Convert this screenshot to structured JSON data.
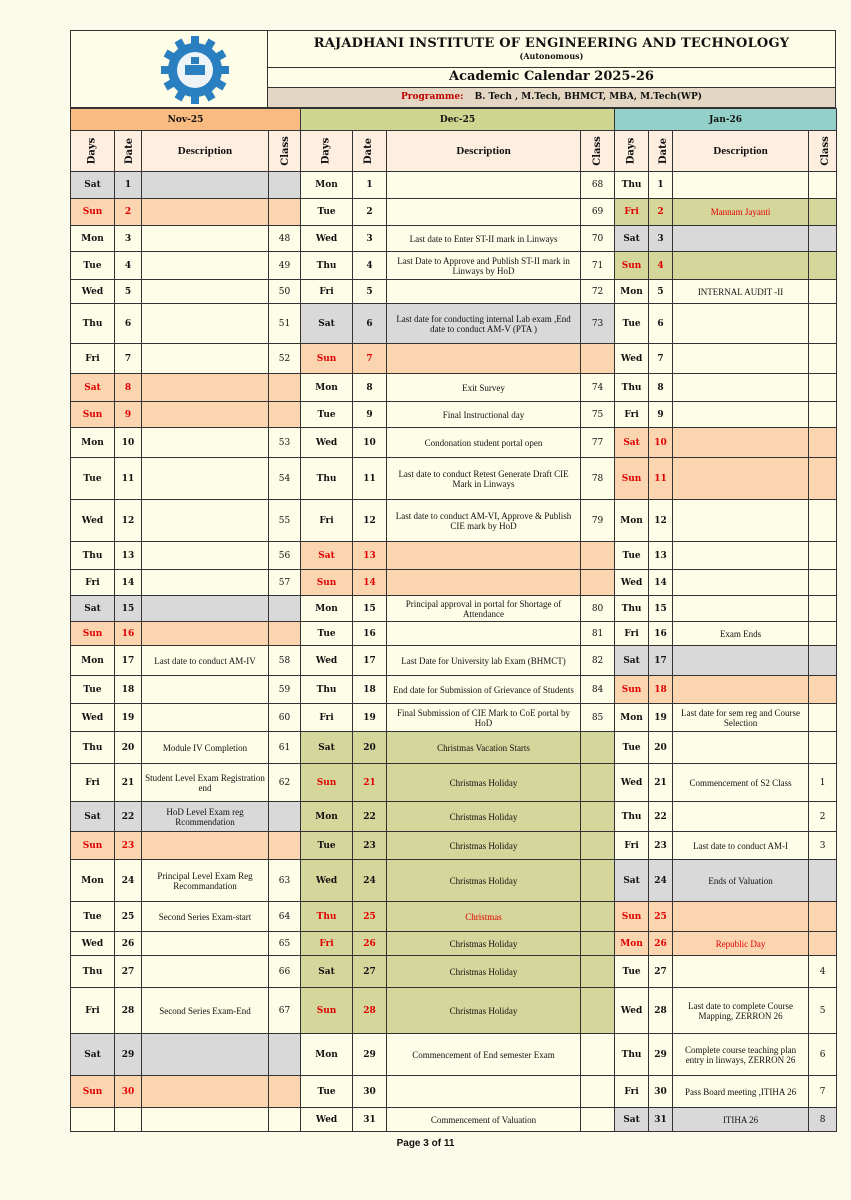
{
  "header": {
    "institute": "RAJADHANI INSTITUTE OF ENGINEERING AND TECHNOLOGY",
    "autonomous": "(Autonomous)",
    "calendar_title": "Academic Calendar 2025-26",
    "programme_label": "Programme:",
    "programme_value": "B. Tech  , M.Tech, BHMCT, MBA, M.Tech(WP)",
    "logo_text": "RIET"
  },
  "columns": {
    "days": "Days",
    "date": "Date",
    "description": "Description",
    "class": "Class"
  },
  "colors": {
    "nov": "#f9bb80",
    "dec": "#cfd68f",
    "jan": "#93d0c9",
    "saturday": "#d9d9d9",
    "holiday": "#fbd5b0",
    "vacation": "#d5d69b",
    "holiday_text": "#e00000"
  },
  "months": [
    {
      "label": "Nov-25",
      "key": "nov",
      "rows": [
        {
          "day": "Sat",
          "date": "1",
          "desc": "",
          "class": "",
          "shade": "sat"
        },
        {
          "day": "Sun",
          "date": "2",
          "desc": "",
          "class": "",
          "shade": "sun",
          "red": true
        },
        {
          "day": "Mon",
          "date": "3",
          "desc": "",
          "class": "48"
        },
        {
          "day": "Tue",
          "date": "4",
          "desc": "",
          "class": "49"
        },
        {
          "day": "Wed",
          "date": "5",
          "desc": "",
          "class": "50"
        },
        {
          "day": "Thu",
          "date": "6",
          "desc": "",
          "class": "51"
        },
        {
          "day": "Fri",
          "date": "7",
          "desc": "",
          "class": "52"
        },
        {
          "day": "Sat",
          "date": "8",
          "desc": "",
          "class": "",
          "shade": "sun",
          "red": true
        },
        {
          "day": "Sun",
          "date": "9",
          "desc": "",
          "class": "",
          "shade": "sun",
          "red": true
        },
        {
          "day": "Mon",
          "date": "10",
          "desc": "",
          "class": "53"
        },
        {
          "day": "Tue",
          "date": "11",
          "desc": "",
          "class": "54"
        },
        {
          "day": "Wed",
          "date": "12",
          "desc": "",
          "class": "55"
        },
        {
          "day": "Thu",
          "date": "13",
          "desc": "",
          "class": "56"
        },
        {
          "day": "Fri",
          "date": "14",
          "desc": "",
          "class": "57"
        },
        {
          "day": "Sat",
          "date": "15",
          "desc": "",
          "class": "",
          "shade": "sat"
        },
        {
          "day": "Sun",
          "date": "16",
          "desc": "",
          "class": "",
          "shade": "sun",
          "red": true
        },
        {
          "day": "Mon",
          "date": "17",
          "desc": "Last date to conduct AM-IV",
          "class": "58"
        },
        {
          "day": "Tue",
          "date": "18",
          "desc": "",
          "class": "59"
        },
        {
          "day": "Wed",
          "date": "19",
          "desc": "",
          "class": "60"
        },
        {
          "day": "Thu",
          "date": "20",
          "desc": "Module IV Completion",
          "class": "61"
        },
        {
          "day": "Fri",
          "date": "21",
          "desc": "Student  Level Exam Registration end",
          "class": "62"
        },
        {
          "day": "Sat",
          "date": "22",
          "desc": "HoD Level Exam reg Rcommendation",
          "class": "",
          "shade": "sat"
        },
        {
          "day": "Sun",
          "date": "23",
          "desc": "",
          "class": "",
          "shade": "sun",
          "red": true
        },
        {
          "day": "Mon",
          "date": "24",
          "desc": "Principal Level Exam Reg Recommandation",
          "class": "63"
        },
        {
          "day": "Tue",
          "date": "25",
          "desc": "Second Series Exam-start",
          "class": "64"
        },
        {
          "day": "Wed",
          "date": "26",
          "desc": "",
          "class": "65"
        },
        {
          "day": "Thu",
          "date": "27",
          "desc": "",
          "class": "66"
        },
        {
          "day": "Fri",
          "date": "28",
          "desc": "Second Series Exam-End",
          "class": "67"
        },
        {
          "day": "Sat",
          "date": "29",
          "desc": "",
          "class": "",
          "shade": "sat"
        },
        {
          "day": "Sun",
          "date": "30",
          "desc": "",
          "class": "",
          "shade": "sun",
          "red": true
        }
      ]
    },
    {
      "label": "Dec-25",
      "key": "dec",
      "rows": [
        {
          "day": "Mon",
          "date": "1",
          "desc": "",
          "class": "68"
        },
        {
          "day": "Tue",
          "date": "2",
          "desc": "",
          "class": "69"
        },
        {
          "day": "Wed",
          "date": "3",
          "desc": "Last date to Enter ST-II mark in Linways",
          "class": "70"
        },
        {
          "day": "Thu",
          "date": "4",
          "desc": "Last Date to Approve and Publish ST-II  mark in Linways by HoD",
          "class": "71"
        },
        {
          "day": "Fri",
          "date": "5",
          "desc": "",
          "class": "72"
        },
        {
          "day": "Sat",
          "date": "6",
          "desc": "Last date for conducting internal Lab exam ,End date to conduct AM-V (PTA )",
          "class": "73",
          "shade": "sat"
        },
        {
          "day": "Sun",
          "date": "7",
          "desc": "",
          "class": "",
          "shade": "sun",
          "red": true
        },
        {
          "day": "Mon",
          "date": "8",
          "desc": "Exit  Survey",
          "class": "74"
        },
        {
          "day": "Tue",
          "date": "9",
          "desc": "Final Instructional day",
          "class": "75"
        },
        {
          "day": "Wed",
          "date": "10",
          "desc": "Condonation  student portal open",
          "class": "77"
        },
        {
          "day": "Thu",
          "date": "11",
          "desc": "Last  date to conduct Retest Generate Draft CIE Mark in Linways",
          "class": "78"
        },
        {
          "day": "Fri",
          "date": "12",
          "desc": "Last date to conduct  AM-VI, Approve & Publish CIE mark by HoD",
          "class": "79"
        },
        {
          "day": "Sat",
          "date": "13",
          "desc": "",
          "class": "",
          "shade": "sun",
          "red": true
        },
        {
          "day": "Sun",
          "date": "14",
          "desc": "",
          "class": "",
          "shade": "sun",
          "red": true
        },
        {
          "day": "Mon",
          "date": "15",
          "desc": "Principal approval in portal for Shortage of Attendance",
          "class": "80"
        },
        {
          "day": "Tue",
          "date": "16",
          "desc": "",
          "class": "81"
        },
        {
          "day": "Wed",
          "date": "17",
          "desc": "Last Date for University lab Exam (BHMCT)",
          "class": "82"
        },
        {
          "day": "Thu",
          "date": "18",
          "desc": "End date for Submission of Grievance of Students",
          "class": "84"
        },
        {
          "day": "Fri",
          "date": "19",
          "desc": "Final Submission of CIE Mark to CoE portal by HoD",
          "class": "85"
        },
        {
          "day": "Sat",
          "date": "20",
          "desc": "Christmas Vacation Starts",
          "class": "",
          "shade": "green"
        },
        {
          "day": "Sun",
          "date": "21",
          "desc": "Christmas Holiday",
          "class": "",
          "shade": "green",
          "red": true
        },
        {
          "day": "Mon",
          "date": "22",
          "desc": "Christmas Holiday",
          "class": "",
          "shade": "green"
        },
        {
          "day": "Tue",
          "date": "23",
          "desc": "Christmas Holiday",
          "class": "",
          "shade": "green"
        },
        {
          "day": "Wed",
          "date": "24",
          "desc": "Christmas Holiday",
          "class": "",
          "shade": "green"
        },
        {
          "day": "Thu",
          "date": "25",
          "desc": "Christmas",
          "class": "",
          "shade": "green",
          "red": true,
          "red_desc": true
        },
        {
          "day": "Fri",
          "date": "26",
          "desc": "Christmas Holiday",
          "class": "",
          "shade": "green",
          "red": true
        },
        {
          "day": "Sat",
          "date": "27",
          "desc": "Christmas Holiday",
          "class": "",
          "shade": "green"
        },
        {
          "day": "Sun",
          "date": "28",
          "desc": "Christmas Holiday",
          "class": "",
          "shade": "green",
          "red": true
        },
        {
          "day": "Mon",
          "date": "29",
          "desc": "Commencement of End semester Exam",
          "class": ""
        },
        {
          "day": "Tue",
          "date": "30",
          "desc": "",
          "class": ""
        },
        {
          "day": "Wed",
          "date": "31",
          "desc": "Commencement of Valuation",
          "class": ""
        }
      ]
    },
    {
      "label": "Jan-26",
      "key": "jan",
      "rows": [
        {
          "day": "Thu",
          "date": "1",
          "desc": "",
          "class": ""
        },
        {
          "day": "Fri",
          "date": "2",
          "desc": "Mannam Jayanti",
          "class": "",
          "shade": "green",
          "red": true,
          "red_desc": true
        },
        {
          "day": "Sat",
          "date": "3",
          "desc": "",
          "class": "",
          "shade": "sat"
        },
        {
          "day": "Sun",
          "date": "4",
          "desc": "",
          "class": "",
          "shade": "green",
          "red": true
        },
        {
          "day": "Mon",
          "date": "5",
          "desc": "INTERNAL AUDIT -II",
          "class": ""
        },
        {
          "day": "Tue",
          "date": "6",
          "desc": "",
          "class": ""
        },
        {
          "day": "Wed",
          "date": "7",
          "desc": "",
          "class": ""
        },
        {
          "day": "Thu",
          "date": "8",
          "desc": "",
          "class": ""
        },
        {
          "day": "Fri",
          "date": "9",
          "desc": "",
          "class": ""
        },
        {
          "day": "Sat",
          "date": "10",
          "desc": "",
          "class": "",
          "shade": "sun",
          "red": true
        },
        {
          "day": "Sun",
          "date": "11",
          "desc": "",
          "class": "",
          "shade": "sun",
          "red": true
        },
        {
          "day": "Mon",
          "date": "12",
          "desc": "",
          "class": ""
        },
        {
          "day": "Tue",
          "date": "13",
          "desc": "",
          "class": ""
        },
        {
          "day": "Wed",
          "date": "14",
          "desc": "",
          "class": ""
        },
        {
          "day": "Thu",
          "date": "15",
          "desc": "",
          "class": ""
        },
        {
          "day": "Fri",
          "date": "16",
          "desc": "Exam Ends",
          "class": ""
        },
        {
          "day": "Sat",
          "date": "17",
          "desc": "",
          "class": "",
          "shade": "sat"
        },
        {
          "day": "Sun",
          "date": "18",
          "desc": "",
          "class": "",
          "shade": "sun",
          "red": true
        },
        {
          "day": "Mon",
          "date": "19",
          "desc": "Last date for sem reg and Course Selection",
          "class": ""
        },
        {
          "day": "Tue",
          "date": "20",
          "desc": "",
          "class": ""
        },
        {
          "day": "Wed",
          "date": "21",
          "desc": "Commencement of S2 Class",
          "class": "1"
        },
        {
          "day": "Thu",
          "date": "22",
          "desc": "",
          "class": "2"
        },
        {
          "day": "Fri",
          "date": "23",
          "desc": "Last date to conduct AM-I",
          "class": "3"
        },
        {
          "day": "Sat",
          "date": "24",
          "desc": "Ends of Valuation",
          "class": "",
          "shade": "sat"
        },
        {
          "day": "Sun",
          "date": "25",
          "desc": "",
          "class": "",
          "shade": "sun",
          "red": true
        },
        {
          "day": "Mon",
          "date": "26",
          "desc": "Republic Day",
          "class": "",
          "shade": "sun",
          "red": true,
          "red_desc": true
        },
        {
          "day": "Tue",
          "date": "27",
          "desc": "",
          "class": "4"
        },
        {
          "day": "Wed",
          "date": "28",
          "desc": "Last date to complete Course Mapping, ZERRON 26",
          "class": "5"
        },
        {
          "day": "Thu",
          "date": "29",
          "desc": "Complete course teaching plan entry in linways, ZERRON 26",
          "class": "6"
        },
        {
          "day": "Fri",
          "date": "30",
          "desc": "Pass  Board meeting ,ITIHA 26",
          "class": "7"
        },
        {
          "day": "Sat",
          "date": "31",
          "desc": "ITIHA 26",
          "class": "8",
          "shade": "sat"
        }
      ]
    }
  ],
  "footer": {
    "page": "Page 3 of 11"
  }
}
